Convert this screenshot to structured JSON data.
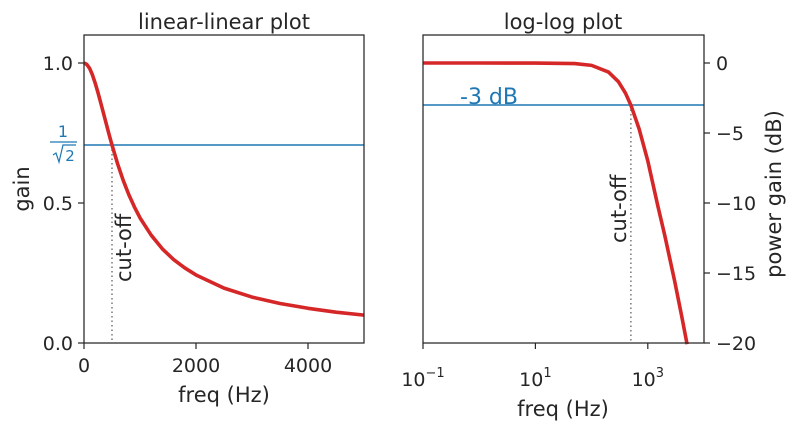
{
  "colors": {
    "curve": "#d62728",
    "reference": "#1f77b4",
    "cutoff": "#808080",
    "axes": "#262626"
  },
  "chart_data": [
    {
      "type": "line",
      "title": "linear-linear plot",
      "xlabel": "freq (Hz)",
      "ylabel": "gain",
      "xlim": [
        0,
        5000
      ],
      "ylim": [
        0,
        1.1
      ],
      "x_scale": "linear",
      "y_scale": "linear",
      "cutoff_hz": 500,
      "x_ticks": [
        {
          "value": 0,
          "label": "0"
        },
        {
          "value": 2000,
          "label": "2000"
        },
        {
          "value": 4000,
          "label": "4000"
        }
      ],
      "y_ticks": [
        {
          "value": 0,
          "label": "0.0"
        },
        {
          "value": 0.5,
          "label": "0.5"
        },
        {
          "value": 1.0,
          "label": "1.0"
        }
      ],
      "reference_line": {
        "value": 0.7071,
        "label_num": "1",
        "label_den": "2"
      },
      "cutoff_label": "cut-off",
      "series": [
        {
          "x": [
            0,
            50,
            100,
            150,
            200,
            250,
            300,
            350,
            400,
            450,
            500,
            600,
            700,
            800,
            900,
            1000,
            1200,
            1400,
            1600,
            1800,
            2000,
            2500,
            3000,
            3500,
            4000,
            4500,
            5000
          ],
          "values": [
            1.0,
            0.995,
            0.981,
            0.958,
            0.928,
            0.894,
            0.857,
            0.819,
            0.781,
            0.743,
            0.707,
            0.64,
            0.581,
            0.53,
            0.486,
            0.447,
            0.385,
            0.336,
            0.298,
            0.268,
            0.243,
            0.196,
            0.164,
            0.141,
            0.124,
            0.11,
            0.0995
          ]
        }
      ]
    },
    {
      "type": "line",
      "title": "log-log plot",
      "xlabel": "freq (Hz)",
      "ylabel": "power gain (dB)",
      "x_scale": "log",
      "y_scale": "linear",
      "xlim": [
        0.1,
        10000
      ],
      "ylim": [
        -20,
        2
      ],
      "cutoff_hz": 500,
      "x_ticks": [
        {
          "value": 0.1,
          "base": "10",
          "exp": "−1"
        },
        {
          "value": 10,
          "base": "10",
          "exp": "1"
        },
        {
          "value": 1000,
          "base": "10",
          "exp": "3"
        }
      ],
      "y_ticks": [
        {
          "value": 0,
          "label": "0"
        },
        {
          "value": -5,
          "label": "−5"
        },
        {
          "value": -10,
          "label": "−10"
        },
        {
          "value": -15,
          "label": "−15"
        },
        {
          "value": -20,
          "label": "−20"
        }
      ],
      "reference_line": {
        "value": -3,
        "label": "-3 dB"
      },
      "cutoff_label": "cut-off",
      "series": [
        {
          "x": [
            0.1,
            1,
            10,
            50,
            100,
            200,
            300,
            400,
            500,
            700,
            1000,
            1500,
            2000,
            3000,
            4000,
            5000
          ],
          "values": [
            0,
            0,
            -0.002,
            -0.043,
            -0.17,
            -0.645,
            -1.335,
            -2.148,
            -3.01,
            -4.703,
            -6.99,
            -10.17,
            -12.3,
            -15.563,
            -18.062,
            -20.086
          ]
        }
      ]
    }
  ]
}
